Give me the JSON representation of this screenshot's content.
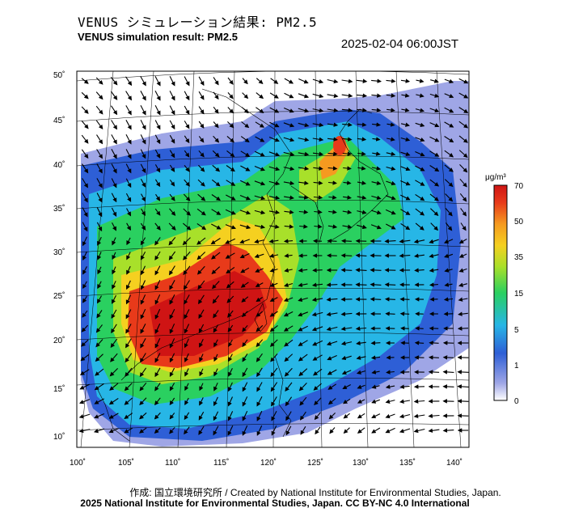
{
  "header": {
    "title_ja": "VENUS シミュレーション結果: PM2.5",
    "title_en": "VENUS simulation result: PM2.5",
    "timestamp": "2025-02-04 06:00JST"
  },
  "map": {
    "lat_ticks": [
      "50˚",
      "45˚",
      "40˚",
      "35˚",
      "30˚",
      "25˚",
      "20˚",
      "15˚",
      "10˚"
    ],
    "lon_ticks": [
      "100˚",
      "105˚",
      "110˚",
      "115˚",
      "120˚",
      "125˚",
      "130˚",
      "135˚",
      "140˚"
    ],
    "region": "East Asia",
    "wind_vectors": "shown"
  },
  "colorbar": {
    "unit": "μg/m³",
    "ticks": [
      "70",
      "50",
      "35",
      "15",
      "5",
      "1",
      "0"
    ],
    "colors": [
      "#ffffff",
      "#9fa6e6",
      "#2e5fd6",
      "#27b6e6",
      "#2ad060",
      "#a8e02a",
      "#f5d020",
      "#f59a20",
      "#e83a1a",
      "#cf1414"
    ]
  },
  "footer": {
    "credit_line": "作成: 国立環境研究所 / Created by National Institute for Environmental Studies, Japan.",
    "license_line": "2025 National Institute for Environmental Studies, Japan. CC BY-NC 4.0 International"
  }
}
